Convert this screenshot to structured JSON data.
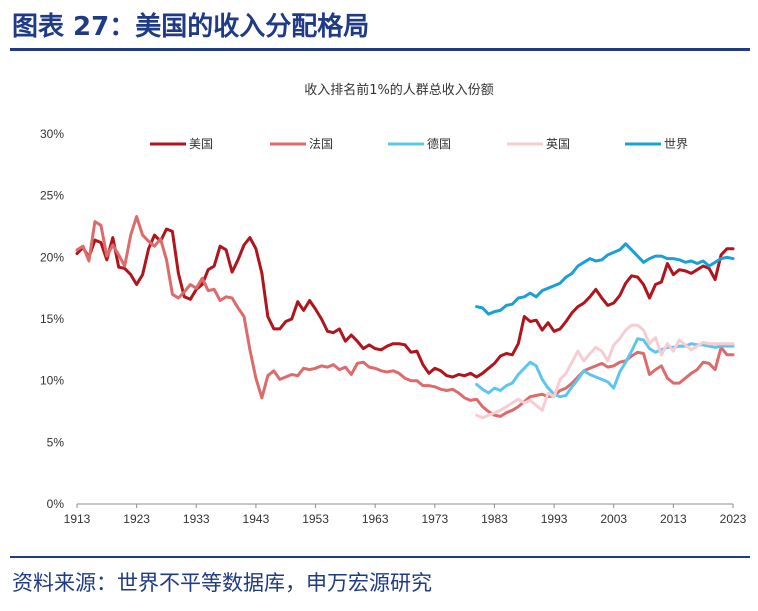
{
  "header": {
    "title": "图表 27：美国的收入分配格局"
  },
  "footer": {
    "source": "资料来源：世界不平等数据库，申万宏源研究"
  },
  "chart_data": {
    "type": "line",
    "title": "收入排名前1%的人群总收入份额",
    "xlabel": "",
    "ylabel": "",
    "xlim": [
      1913,
      2023
    ],
    "ylim": [
      0,
      30
    ],
    "x_ticks": [
      "1913",
      "1923",
      "1933",
      "1943",
      "1953",
      "1963",
      "1973",
      "1983",
      "1993",
      "2003",
      "2013",
      "2023"
    ],
    "y_ticks": [
      "0%",
      "5%",
      "10%",
      "15%",
      "20%",
      "25%",
      "30%"
    ],
    "legend_position": "top",
    "series": [
      {
        "name": "美国",
        "color": "#b0141c",
        "x": [
          1913,
          1914,
          1915,
          1916,
          1917,
          1918,
          1919,
          1920,
          1921,
          1922,
          1923,
          1924,
          1925,
          1926,
          1927,
          1928,
          1929,
          1930,
          1931,
          1932,
          1933,
          1934,
          1935,
          1936,
          1937,
          1938,
          1939,
          1940,
          1941,
          1942,
          1943,
          1944,
          1945,
          1946,
          1947,
          1948,
          1949,
          1950,
          1951,
          1952,
          1953,
          1954,
          1955,
          1956,
          1957,
          1958,
          1959,
          1960,
          1961,
          1962,
          1963,
          1964,
          1965,
          1966,
          1967,
          1968,
          1969,
          1970,
          1971,
          1972,
          1973,
          1974,
          1975,
          1976,
          1977,
          1978,
          1979,
          1980,
          1981,
          1982,
          1983,
          1984,
          1985,
          1986,
          1987,
          1988,
          1989,
          1990,
          1991,
          1992,
          1993,
          1994,
          1995,
          1996,
          1997,
          1998,
          1999,
          2000,
          2001,
          2002,
          2003,
          2004,
          2005,
          2006,
          2007,
          2008,
          2009,
          2010,
          2011,
          2012,
          2013,
          2014,
          2015,
          2016,
          2017,
          2018,
          2019,
          2020,
          2021,
          2022,
          2023
        ],
        "y": [
          20.3,
          20.8,
          20.0,
          21.4,
          21.2,
          19.8,
          21.6,
          19.2,
          19.1,
          18.6,
          17.8,
          18.6,
          20.7,
          21.8,
          21.3,
          22.3,
          22.1,
          18.7,
          16.8,
          16.6,
          17.4,
          17.8,
          19.0,
          19.3,
          20.9,
          20.6,
          18.8,
          19.8,
          21.0,
          21.6,
          20.7,
          18.7,
          15.2,
          14.2,
          14.2,
          14.8,
          15.0,
          16.4,
          15.7,
          16.5,
          15.8,
          15.0,
          14.0,
          13.9,
          14.2,
          13.2,
          13.7,
          13.2,
          12.6,
          12.9,
          12.6,
          12.5,
          12.8,
          13.0,
          13.0,
          12.9,
          12.3,
          12.4,
          11.3,
          10.6,
          11.0,
          10.8,
          10.4,
          10.3,
          10.5,
          10.4,
          10.6,
          10.3,
          10.6,
          11.0,
          11.4,
          12.0,
          12.2,
          12.1,
          13.0,
          15.2,
          14.8,
          14.9,
          14.1,
          14.7,
          14.0,
          14.2,
          14.8,
          15.5,
          16.0,
          16.3,
          16.8,
          17.4,
          16.7,
          16.1,
          16.3,
          16.9,
          17.9,
          18.5,
          18.4,
          17.8,
          16.7,
          17.8,
          18.0,
          19.5,
          18.6,
          19.0,
          18.9,
          18.7,
          19.0,
          19.3,
          19.1,
          18.2,
          20.2,
          20.7,
          20.7
        ]
      },
      {
        "name": "法国",
        "color": "#dc6b6b",
        "x": [
          1913,
          1914,
          1915,
          1916,
          1917,
          1918,
          1919,
          1920,
          1921,
          1922,
          1923,
          1924,
          1925,
          1926,
          1927,
          1928,
          1929,
          1930,
          1931,
          1932,
          1933,
          1934,
          1935,
          1936,
          1937,
          1938,
          1939,
          1940,
          1941,
          1942,
          1943,
          1944,
          1945,
          1946,
          1947,
          1948,
          1949,
          1950,
          1951,
          1952,
          1953,
          1954,
          1955,
          1956,
          1957,
          1958,
          1959,
          1960,
          1961,
          1962,
          1963,
          1964,
          1965,
          1966,
          1967,
          1968,
          1969,
          1970,
          1971,
          1972,
          1973,
          1974,
          1975,
          1976,
          1977,
          1978,
          1979,
          1980,
          1981,
          1982,
          1983,
          1984,
          1985,
          1986,
          1987,
          1988,
          1989,
          1990,
          1991,
          1992,
          1993,
          1994,
          1995,
          1996,
          1997,
          1998,
          1999,
          2000,
          2001,
          2002,
          2003,
          2004,
          2005,
          2006,
          2007,
          2008,
          2009,
          2010,
          2011,
          2012,
          2013,
          2014,
          2015,
          2016,
          2017,
          2018,
          2019,
          2020,
          2021,
          2022,
          2023
        ],
        "y": [
          20.6,
          20.9,
          19.7,
          22.9,
          22.6,
          20.1,
          21.0,
          20.2,
          19.3,
          21.8,
          23.3,
          21.8,
          21.3,
          20.9,
          21.5,
          19.8,
          17.0,
          16.7,
          17.2,
          17.8,
          17.5,
          18.3,
          17.3,
          17.4,
          16.5,
          16.8,
          16.7,
          15.9,
          15.2,
          12.5,
          10.2,
          8.6,
          10.4,
          10.8,
          10.1,
          10.3,
          10.5,
          10.4,
          11.0,
          10.9,
          11.0,
          11.2,
          11.1,
          11.3,
          10.9,
          11.1,
          10.5,
          11.4,
          11.5,
          11.1,
          11.0,
          10.8,
          10.7,
          10.8,
          10.6,
          10.2,
          10.0,
          10.0,
          9.6,
          9.6,
          9.5,
          9.3,
          9.2,
          9.3,
          9.0,
          8.6,
          8.4,
          8.5,
          7.9,
          7.5,
          7.2,
          7.1,
          7.4,
          7.6,
          7.9,
          8.3,
          8.7,
          8.8,
          8.9,
          8.7,
          8.8,
          9.2,
          9.4,
          9.8,
          10.3,
          10.8,
          11.0,
          11.2,
          11.4,
          11.1,
          11.2,
          11.5,
          11.6,
          12.0,
          12.3,
          12.2,
          10.5,
          10.9,
          11.2,
          10.2,
          9.8,
          9.8,
          10.2,
          10.6,
          10.9,
          11.5,
          11.4,
          10.9,
          12.7,
          12.1,
          12.1
        ]
      },
      {
        "name": "德国",
        "color": "#5ec6ee",
        "x": [
          1980,
          1981,
          1982,
          1983,
          1984,
          1985,
          1986,
          1987,
          1988,
          1989,
          1990,
          1991,
          1992,
          1993,
          1994,
          1995,
          1996,
          1997,
          1998,
          1999,
          2000,
          2001,
          2002,
          2003,
          2004,
          2005,
          2006,
          2007,
          2008,
          2009,
          2010,
          2011,
          2012,
          2013,
          2014,
          2015,
          2016,
          2017,
          2018,
          2019,
          2020,
          2021,
          2022,
          2023
        ],
        "y": [
          9.7,
          9.3,
          9.0,
          9.4,
          9.2,
          9.6,
          9.8,
          10.5,
          11.0,
          11.5,
          11.2,
          10.1,
          9.4,
          8.9,
          8.7,
          8.8,
          9.5,
          10.1,
          10.8,
          10.5,
          10.3,
          10.1,
          9.9,
          9.4,
          10.7,
          11.5,
          12.4,
          13.4,
          13.3,
          12.6,
          12.3,
          12.5,
          12.7,
          12.7,
          12.8,
          12.8,
          13.0,
          12.9,
          12.9,
          12.8,
          12.7,
          12.8,
          12.8,
          12.8
        ]
      },
      {
        "name": "英国",
        "color": "#f6cdd2",
        "x": [
          1980,
          1981,
          1982,
          1983,
          1984,
          1985,
          1986,
          1987,
          1988,
          1989,
          1990,
          1991,
          1992,
          1993,
          1994,
          1995,
          1996,
          1997,
          1998,
          1999,
          2000,
          2001,
          2002,
          2003,
          2004,
          2005,
          2006,
          2007,
          2008,
          2009,
          2010,
          2011,
          2012,
          2013,
          2014,
          2015,
          2016,
          2017,
          2018,
          2019,
          2020,
          2021,
          2022,
          2023
        ],
        "y": [
          7.2,
          7.0,
          7.2,
          7.4,
          7.6,
          7.9,
          8.2,
          8.5,
          8.2,
          8.4,
          8.0,
          7.6,
          9.0,
          8.7,
          10.1,
          10.6,
          11.5,
          12.4,
          11.6,
          12.2,
          12.7,
          12.4,
          11.6,
          12.9,
          13.4,
          14.1,
          14.5,
          14.5,
          14.1,
          13.0,
          13.5,
          12.1,
          13.0,
          12.4,
          13.3,
          12.9,
          12.5,
          12.8,
          13.1,
          13.0,
          13.0,
          13.0,
          13.0,
          13.0
        ]
      },
      {
        "name": "世界",
        "color": "#1aa0d4",
        "x": [
          1980,
          1981,
          1982,
          1983,
          1984,
          1985,
          1986,
          1987,
          1988,
          1989,
          1990,
          1991,
          1992,
          1993,
          1994,
          1995,
          1996,
          1997,
          1998,
          1999,
          2000,
          2001,
          2002,
          2003,
          2004,
          2005,
          2006,
          2007,
          2008,
          2009,
          2010,
          2011,
          2012,
          2013,
          2014,
          2015,
          2016,
          2017,
          2018,
          2019,
          2020,
          2021,
          2022,
          2023
        ],
        "y": [
          16.0,
          15.9,
          15.4,
          15.6,
          15.7,
          16.1,
          16.2,
          16.7,
          16.8,
          17.1,
          16.8,
          17.3,
          17.5,
          17.7,
          17.9,
          18.4,
          18.7,
          19.3,
          19.6,
          19.9,
          19.7,
          19.8,
          20.2,
          20.4,
          20.6,
          21.1,
          20.6,
          20.1,
          19.6,
          19.9,
          20.1,
          20.1,
          19.9,
          19.9,
          19.8,
          19.6,
          19.7,
          19.5,
          19.7,
          19.3,
          19.6,
          19.9,
          20.0,
          19.9
        ]
      }
    ]
  }
}
